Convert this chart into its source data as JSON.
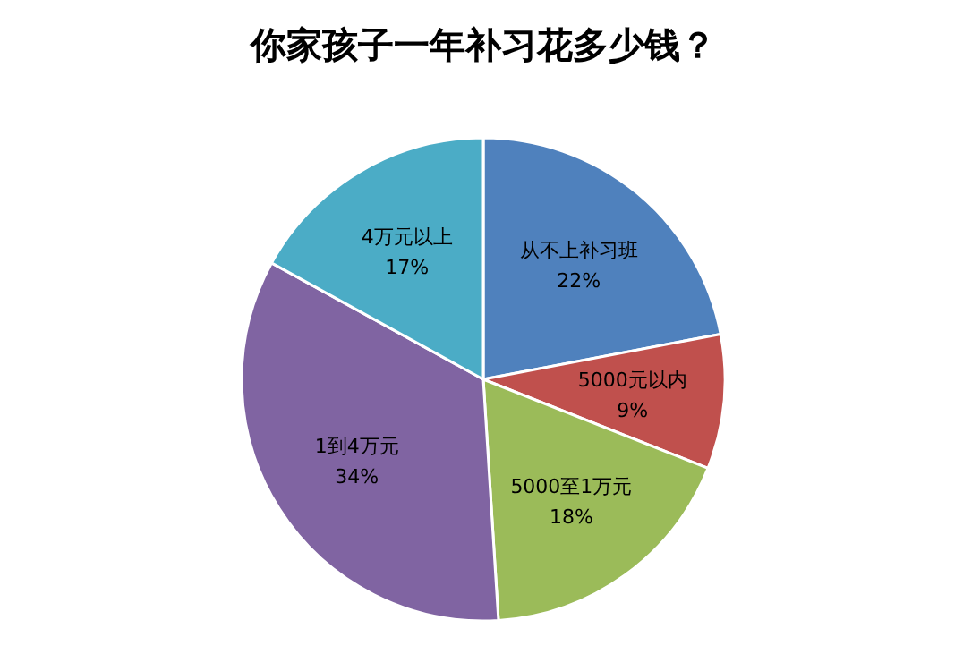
{
  "chart_data": {
    "type": "pie",
    "title": "你家孩子一年补习花多少钱？",
    "categories": [
      "从不上补习班",
      "5000元以内",
      "5000至1万元",
      "1到4万元",
      "4万元以上"
    ],
    "values": [
      22,
      9,
      18,
      34,
      17
    ],
    "colors": [
      "#4f81bd",
      "#c0504d",
      "#9bbb59",
      "#8064a2",
      "#4bacc6"
    ],
    "value_labels": [
      "22%",
      "9%",
      "18%",
      "34%",
      "17%"
    ]
  }
}
